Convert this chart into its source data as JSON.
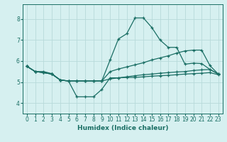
{
  "xlabel": "Humidex (Indice chaleur)",
  "bg_color": "#d6f0f0",
  "grid_color": "#b8dada",
  "line_color": "#1a6e64",
  "xlim": [
    -0.5,
    23.5
  ],
  "ylim": [
    3.5,
    8.7
  ],
  "yticks": [
    4,
    5,
    6,
    7,
    8
  ],
  "xticks": [
    0,
    1,
    2,
    3,
    4,
    5,
    6,
    7,
    8,
    9,
    10,
    11,
    12,
    13,
    14,
    15,
    16,
    17,
    18,
    19,
    20,
    21,
    22,
    23
  ],
  "series1": [
    5.75,
    5.5,
    5.5,
    5.4,
    5.1,
    5.05,
    4.3,
    4.3,
    4.3,
    4.65,
    5.2,
    5.2,
    5.22,
    5.22,
    5.25,
    5.28,
    5.3,
    5.32,
    5.35,
    5.38,
    5.4,
    5.42,
    5.45,
    5.35
  ],
  "series2": [
    5.75,
    5.5,
    5.45,
    5.38,
    5.1,
    5.05,
    5.05,
    5.05,
    5.05,
    5.05,
    5.15,
    5.2,
    5.25,
    5.3,
    5.35,
    5.38,
    5.42,
    5.45,
    5.48,
    5.5,
    5.55,
    5.58,
    5.6,
    5.38
  ],
  "series3": [
    5.75,
    5.5,
    5.45,
    5.38,
    5.1,
    5.05,
    5.05,
    5.05,
    5.05,
    5.05,
    6.05,
    7.05,
    7.3,
    8.05,
    8.05,
    7.6,
    7.0,
    6.65,
    6.65,
    5.85,
    5.9,
    5.88,
    5.6,
    5.38
  ],
  "series4": [
    5.75,
    5.5,
    5.45,
    5.38,
    5.1,
    5.05,
    5.05,
    5.05,
    5.05,
    5.05,
    5.5,
    5.62,
    5.72,
    5.82,
    5.92,
    6.05,
    6.15,
    6.25,
    6.38,
    6.48,
    6.52,
    6.52,
    5.78,
    5.38
  ]
}
